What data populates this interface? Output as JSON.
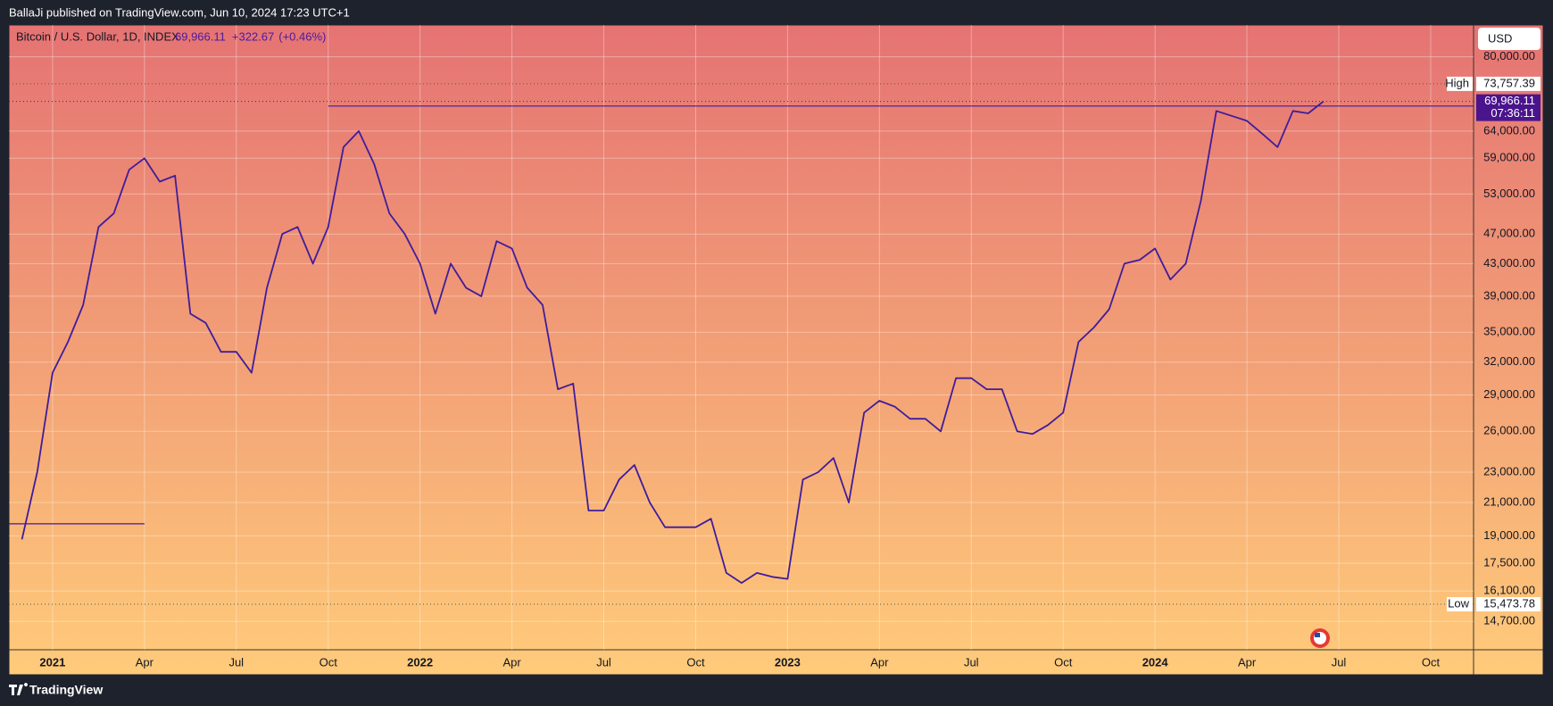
{
  "header": {
    "text": "BallaJi published on TradingView.com, Jun 10, 2024 17:23 UTC+1"
  },
  "footer": {
    "brand": "TradingView"
  },
  "chart_data": {
    "type": "line",
    "title": "Bitcoin / U.S. Dollar, 1D, INDEX",
    "last_price": {
      "value": 69966.11,
      "label": "69,966.11"
    },
    "change": "+322.67",
    "change_pct": "(+0.46%)",
    "currency": "USD",
    "countdown": "07:36:11",
    "high": {
      "name": "High",
      "value": 73757.39,
      "label": "73,757.39"
    },
    "low": {
      "name": "Low",
      "value": 15473.78,
      "label": "15,473.78"
    },
    "color": "#3f1d9c",
    "log_scale": true,
    "grid": true,
    "values": [
      18800,
      23000,
      31000,
      34000,
      38000,
      48000,
      50000,
      57000,
      59000,
      55000,
      56000,
      37000,
      36000,
      33000,
      33000,
      31000,
      40000,
      47000,
      48000,
      43000,
      48000,
      61000,
      64000,
      58000,
      50000,
      47000,
      43000,
      37000,
      43000,
      40000,
      39000,
      46000,
      45000,
      40000,
      38000,
      29500,
      30000,
      20500,
      20500,
      22500,
      23500,
      21000,
      19500,
      19500,
      19500,
      20000,
      17000,
      16500,
      17000,
      16800,
      16700,
      22500,
      23000,
      24000,
      21000,
      27500,
      28500,
      28000,
      27000,
      27000,
      26000,
      30500,
      30500,
      29500,
      29500,
      26000,
      25800,
      26500,
      27500,
      34000,
      35500,
      37500,
      43000,
      43500,
      45000,
      41000,
      43000,
      52000,
      68000,
      67000,
      66000,
      63500,
      61000,
      68000,
      67500,
      69966.11
    ],
    "horizontal_lines": [
      69000,
      19700
    ],
    "xlim": [
      -0.85,
      94.8
    ],
    "xticks": [
      {
        "value": 2,
        "label": "2021"
      },
      {
        "value": 8,
        "label": "Apr"
      },
      {
        "value": 14,
        "label": "Jul"
      },
      {
        "value": 20,
        "label": "Oct"
      },
      {
        "value": 26,
        "label": "2022"
      },
      {
        "value": 32,
        "label": "Apr"
      },
      {
        "value": 38,
        "label": "Jul"
      },
      {
        "value": 44,
        "label": "Oct"
      },
      {
        "value": 50,
        "label": "2023"
      },
      {
        "value": 56,
        "label": "Apr"
      },
      {
        "value": 62,
        "label": "Jul"
      },
      {
        "value": 68,
        "label": "Oct"
      },
      {
        "value": 74,
        "label": "2024"
      },
      {
        "value": 80,
        "label": "Apr"
      },
      {
        "value": 86,
        "label": "Jul"
      },
      {
        "value": 92,
        "label": "Oct"
      }
    ],
    "ylim": [
      13500,
      88000
    ],
    "yticks": [
      {
        "value": 14700,
        "label": "14,700.00"
      },
      {
        "value": 16100,
        "label": "16,100.00"
      },
      {
        "value": 17500,
        "label": "17,500.00"
      },
      {
        "value": 19000,
        "label": "19,000.00"
      },
      {
        "value": 21000,
        "label": "21,000.00"
      },
      {
        "value": 23000,
        "label": "23,000.00"
      },
      {
        "value": 26000,
        "label": "26,000.00"
      },
      {
        "value": 29000,
        "label": "29,000.00"
      },
      {
        "value": 32000,
        "label": "32,000.00"
      },
      {
        "value": 35000,
        "label": "35,000.00"
      },
      {
        "value": 39000,
        "label": "39,000.00"
      },
      {
        "value": 43000,
        "label": "43,000.00"
      },
      {
        "value": 47000,
        "label": "47,000.00"
      },
      {
        "value": 53000,
        "label": "53,000.00"
      },
      {
        "value": 59000,
        "label": "59,000.00"
      },
      {
        "value": 64000,
        "label": "64,000.00"
      },
      {
        "value": 80000,
        "label": "80,000.00"
      }
    ]
  }
}
